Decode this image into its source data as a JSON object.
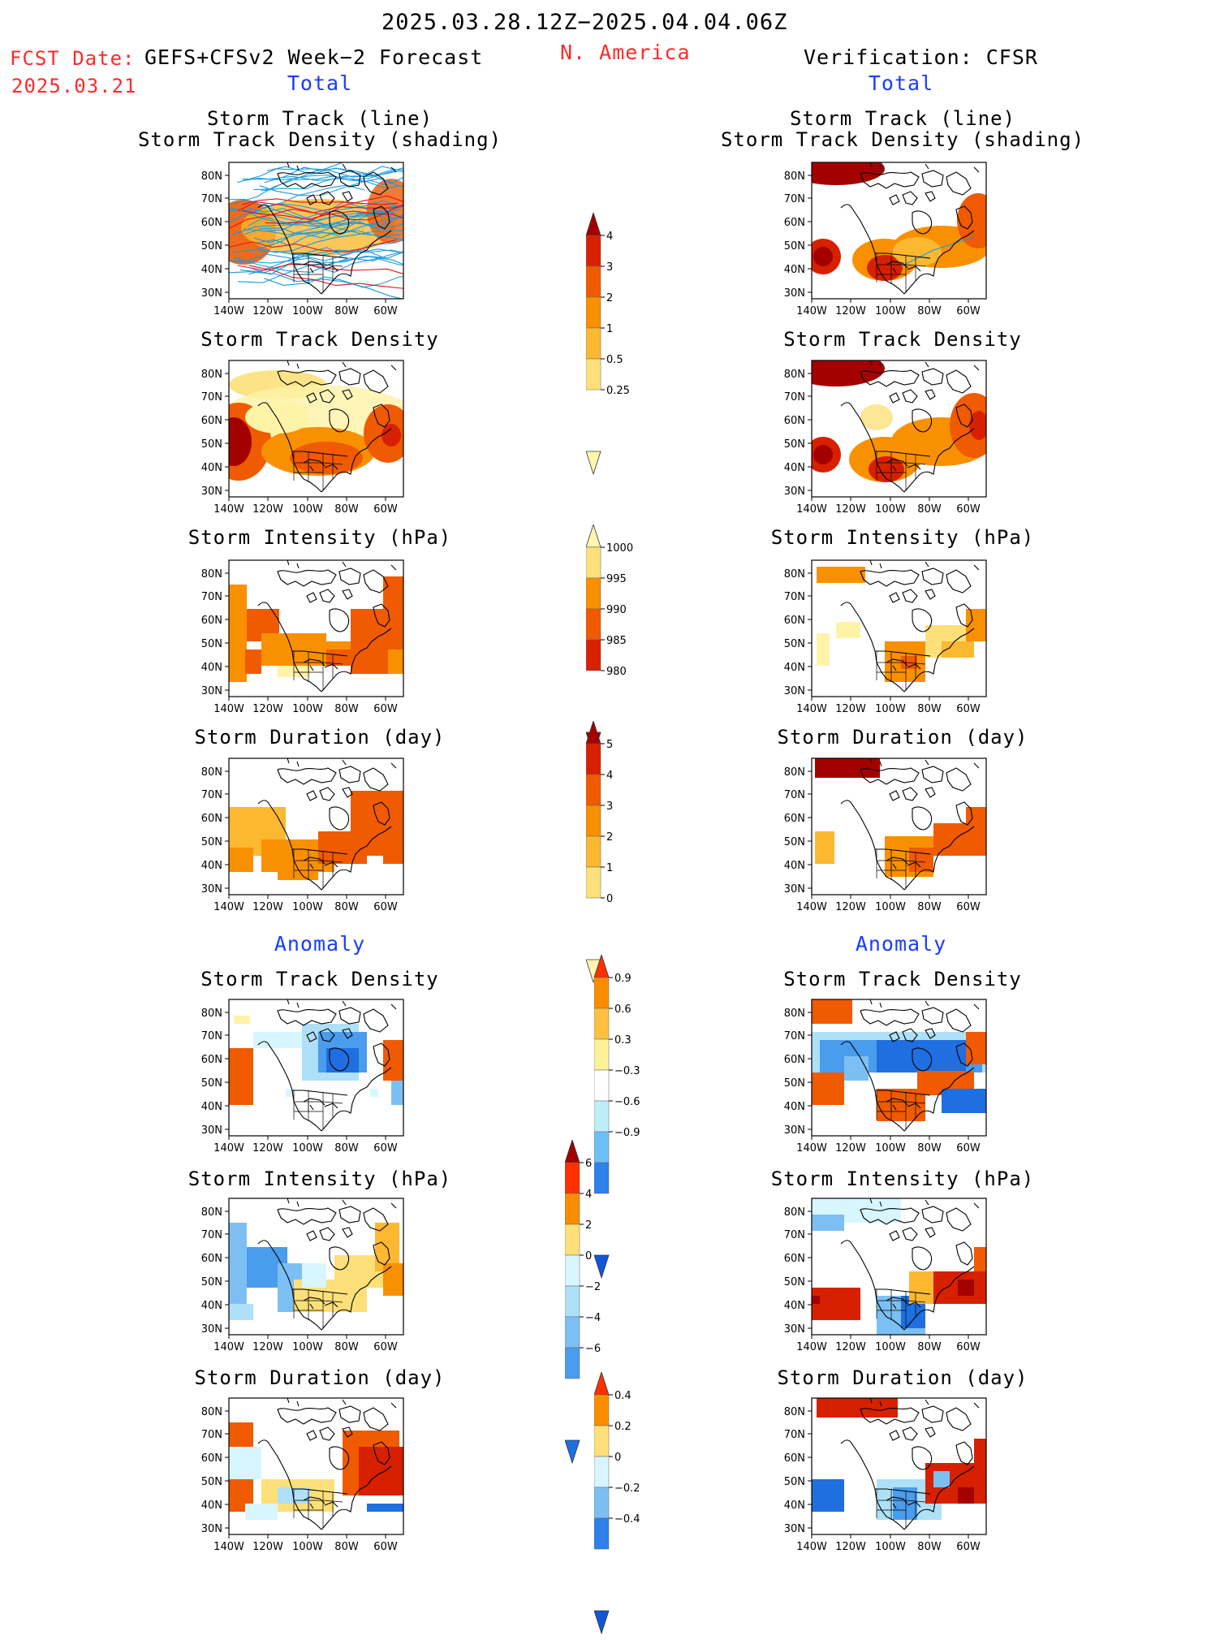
{
  "header": {
    "valid_period": "2025.03.28.12Z−2025.04.04.06Z",
    "fcst_label": "FCST Date:",
    "fcst_date": "2025.03.21",
    "model": "GEFS+CFSv2 Week−2 Forecast",
    "region": "N. America",
    "verification": "Verification: CFSR"
  },
  "sections": {
    "total": "Total",
    "anomaly": "Anomaly"
  },
  "panel_titles": {
    "track_line": "Storm Track (line)",
    "track_shading": "Storm Track Density (shading)",
    "density": "Storm Track Density",
    "intensity": "Storm Intensity (hPa)",
    "duration": "Storm Duration (day)"
  },
  "axes": {
    "lat_labels": [
      "80N",
      "70N",
      "60N",
      "50N",
      "40N",
      "30N"
    ],
    "lon_labels": [
      "140W",
      "120W",
      "100W",
      "80W",
      "60W"
    ]
  },
  "colorbars": {
    "density_total": {
      "labels": [
        "4",
        "3",
        "2",
        "1",
        "0.5",
        "0.25"
      ],
      "colors": [
        "#a50000",
        "#d72000",
        "#f05a00",
        "#f99000",
        "#fbb830",
        "#fde07a",
        "#fff6b0"
      ]
    },
    "intensity_total": {
      "labels": [
        "1000",
        "995",
        "990",
        "985",
        "980"
      ],
      "colors": [
        "#fff6b0",
        "#fde07a",
        "#f99000",
        "#f05a00",
        "#d72000",
        "#a50000"
      ]
    },
    "duration_total": {
      "labels": [
        "5",
        "4",
        "3",
        "2",
        "1",
        "0"
      ],
      "colors": [
        "#a50000",
        "#d72000",
        "#f05a00",
        "#f99000",
        "#fbb830",
        "#fde07a",
        "#fff6b0"
      ]
    },
    "density_anom": {
      "labels": [
        "0.9",
        "0.6",
        "0.3",
        "−0.3",
        "−0.6",
        "−0.9"
      ],
      "colors": [
        "#ff3000",
        "#fb8c00",
        "#fdc040",
        "#fff09a",
        "#ffffff",
        "#bfeefa",
        "#6cc0f5",
        "#2f80e8",
        "#1058d8"
      ]
    },
    "intensity_anom": {
      "labels": [
        "6",
        "4",
        "2",
        "0",
        "−2",
        "−4",
        "−6"
      ],
      "colors": [
        "#a50000",
        "#ff3000",
        "#fb8c00",
        "#fde07a",
        "#d8f6ff",
        "#aee0f8",
        "#7cc0f3",
        "#4a9cec",
        "#1f6fe0"
      ]
    },
    "duration_anom": {
      "labels": [
        "0.4",
        "0.2",
        "0",
        "−0.2",
        "−0.4"
      ],
      "colors": [
        "#ff3000",
        "#fb8c00",
        "#fde07a",
        "#d8f6ff",
        "#7cc0f3",
        "#2f80e8",
        "#1058d8"
      ]
    }
  },
  "map_colors": {
    "track_line": "#1a9be0",
    "track_red": "#e01020",
    "coast": "#000000"
  }
}
